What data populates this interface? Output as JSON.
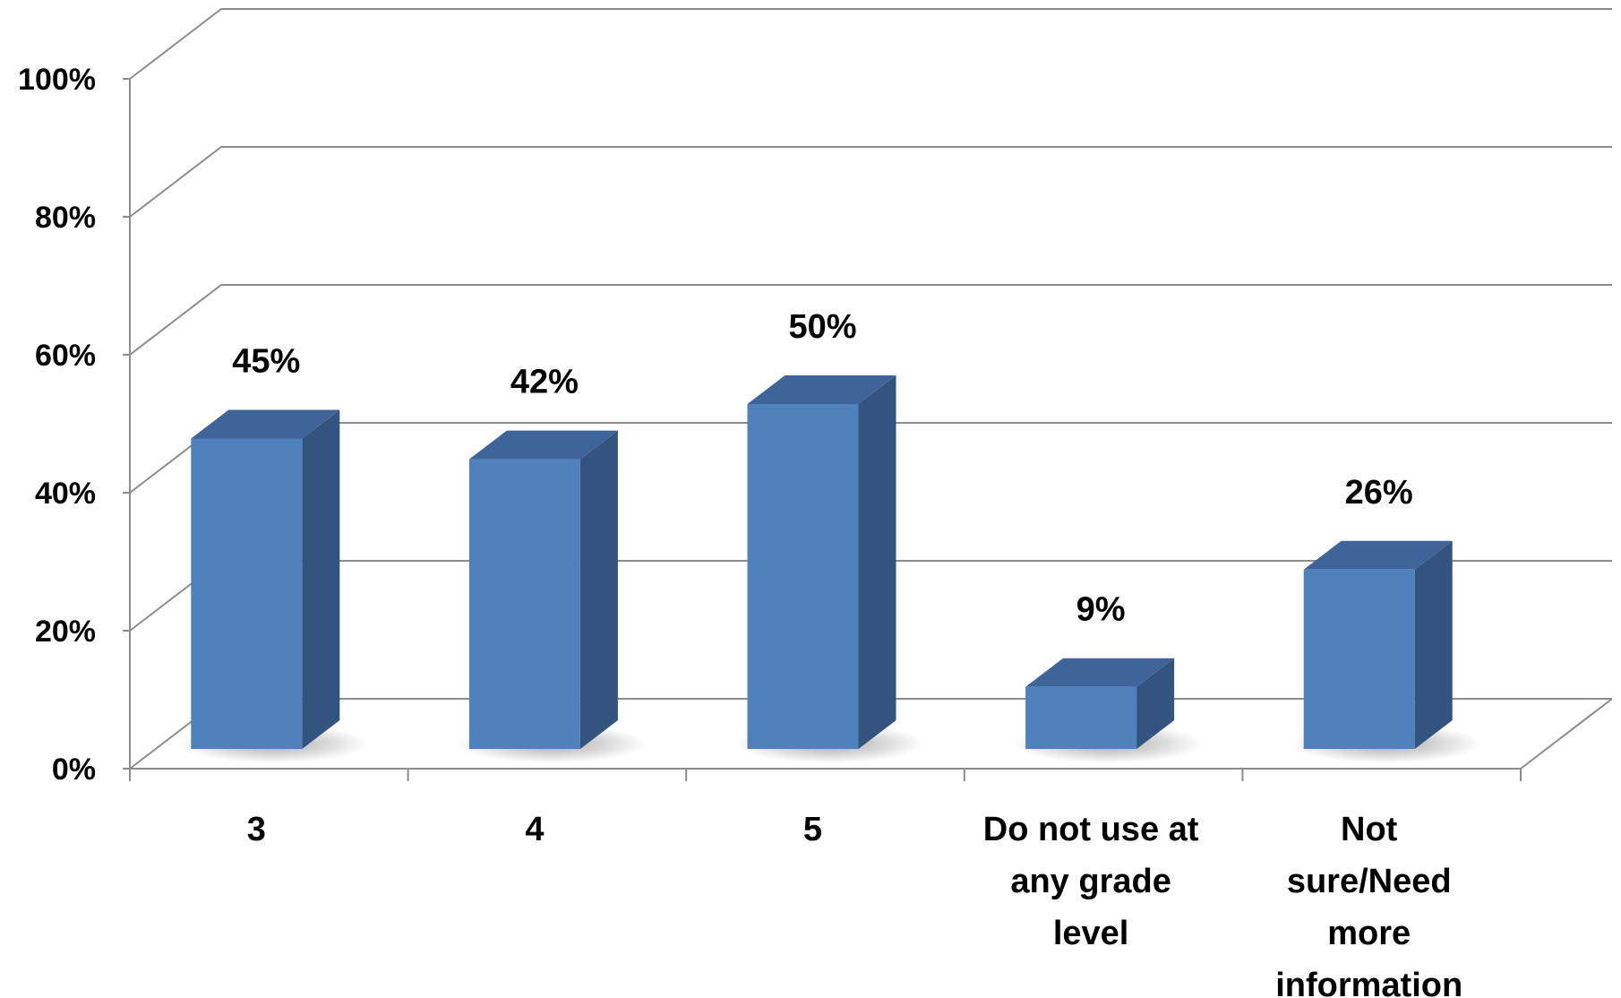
{
  "chart_data": {
    "type": "bar",
    "categories": [
      "3",
      "4",
      "5",
      "Do not use at any grade level",
      "Not sure/Need more information"
    ],
    "category_lines": [
      [
        "3"
      ],
      [
        "4"
      ],
      [
        "5"
      ],
      [
        "Do not use at",
        "any grade",
        "level"
      ],
      [
        "Not",
        "sure/Need",
        "more",
        "information"
      ]
    ],
    "values": [
      45,
      42,
      50,
      9,
      26
    ],
    "data_labels": [
      "45%",
      "42%",
      "50%",
      "9%",
      "26%"
    ],
    "y_ticks": [
      "0%",
      "20%",
      "40%",
      "60%",
      "80%",
      "100%"
    ],
    "ylim": [
      0,
      100
    ],
    "title": "",
    "xlabel": "",
    "ylabel": "",
    "grid": true,
    "legend": "none",
    "style": "3d-column",
    "colors": {
      "bar_front": "#4f81bd",
      "bar_side": "#345480",
      "bar_top": "#3f649a",
      "grid": "#8c8c8c"
    }
  }
}
